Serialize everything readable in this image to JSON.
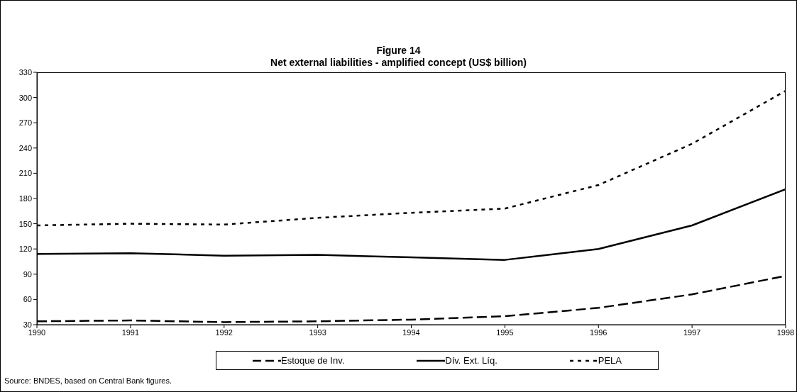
{
  "chart_data": {
    "type": "line",
    "title": "Figure 14",
    "subtitle": "Net external liabilities - amplified concept (US$ billion)",
    "categories": [
      "1990",
      "1991",
      "1992",
      "1993",
      "1994",
      "1995",
      "1996",
      "1997",
      "1998"
    ],
    "series": [
      {
        "name": "Estoque de Inv.",
        "color": "#000000",
        "line_style": "dashed",
        "values": [
          34,
          35,
          33,
          34,
          36,
          40,
          50,
          66,
          88
        ]
      },
      {
        "name": "Dív. Ext. Líq.",
        "color": "#000000",
        "line_style": "solid",
        "values": [
          114,
          115,
          112,
          113,
          110,
          107,
          120,
          148,
          191
        ]
      },
      {
        "name": "PELA",
        "color": "#000000",
        "line_style": "dotted",
        "values": [
          148,
          150,
          149,
          157,
          163,
          168,
          196,
          245,
          308
        ]
      }
    ],
    "ylim": [
      30,
      330
    ],
    "yticks": [
      30,
      60,
      90,
      120,
      150,
      180,
      210,
      240,
      270,
      300,
      330
    ],
    "legend": "bottom",
    "marker": "none",
    "annotations": [
      "Source: BNDES, based on Central Bank figures."
    ]
  }
}
